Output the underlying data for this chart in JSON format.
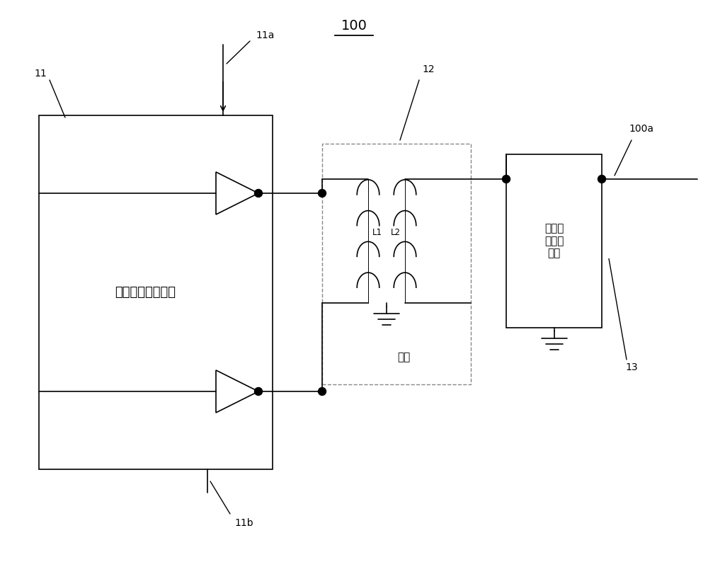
{
  "title": "100",
  "bg_color": "#ffffff",
  "line_color": "#000000",
  "label_11": "11",
  "label_11a": "11a",
  "label_11b": "11b",
  "label_12": "12",
  "label_13": "13",
  "label_100a": "100a",
  "label_diff_circuit": "差分功率放大电路",
  "label_balun": "巴伦",
  "label_harmonic": "第一谐\n波抑制\n单元",
  "label_L1": "L1",
  "label_L2": "L2",
  "figsize": [
    10.0,
    8.18
  ],
  "dpi": 100
}
